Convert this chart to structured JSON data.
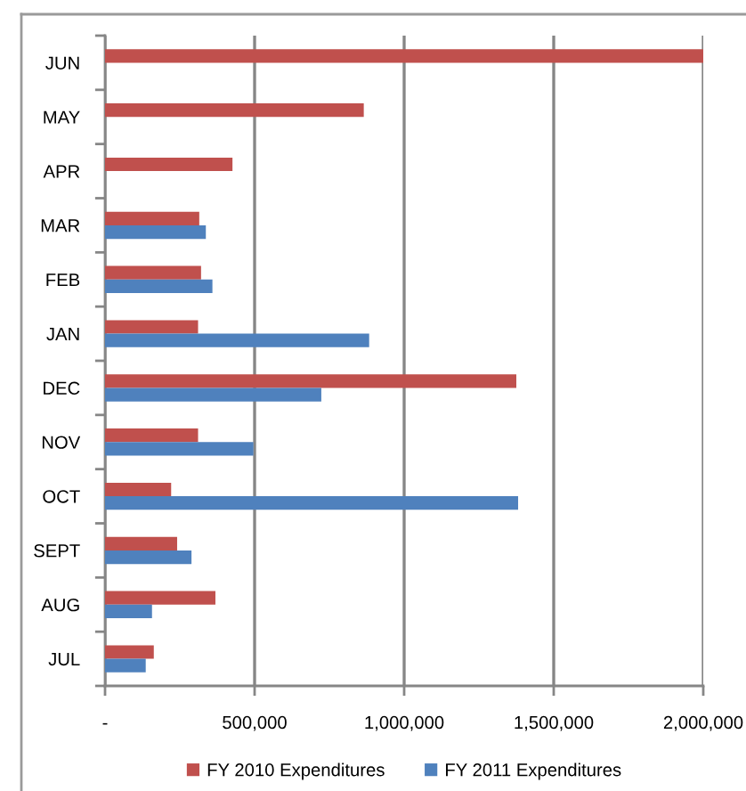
{
  "chart_data": {
    "type": "bar",
    "orientation": "horizontal",
    "categories": [
      "JUN",
      "MAY",
      "APR",
      "MAR",
      "FEB",
      "JAN",
      "DEC",
      "NOV",
      "OCT",
      "SEPT",
      "AUG",
      "JUL"
    ],
    "series": [
      {
        "name": "FY 2010 Expenditures",
        "color": "#c0504d",
        "values": [
          2000000,
          865000,
          426000,
          315000,
          321000,
          311000,
          1375000,
          311000,
          221000,
          241000,
          369000,
          163000
        ]
      },
      {
        "name": "FY 2011 Expenditures",
        "color": "#4f81bd",
        "values": [
          null,
          null,
          null,
          337000,
          359000,
          883000,
          723000,
          496000,
          1381000,
          289000,
          157000,
          136000
        ]
      }
    ],
    "xlim": [
      0,
      2000000
    ],
    "xticks": [
      {
        "value": 0,
        "label": "-"
      },
      {
        "value": 500000,
        "label": "500,000"
      },
      {
        "value": 1000000,
        "label": "1,000,000"
      },
      {
        "value": 1500000,
        "label": "1,500,000"
      },
      {
        "value": 2000000,
        "label": "2,000,000"
      }
    ],
    "grid": "x",
    "legend": "bottom"
  }
}
